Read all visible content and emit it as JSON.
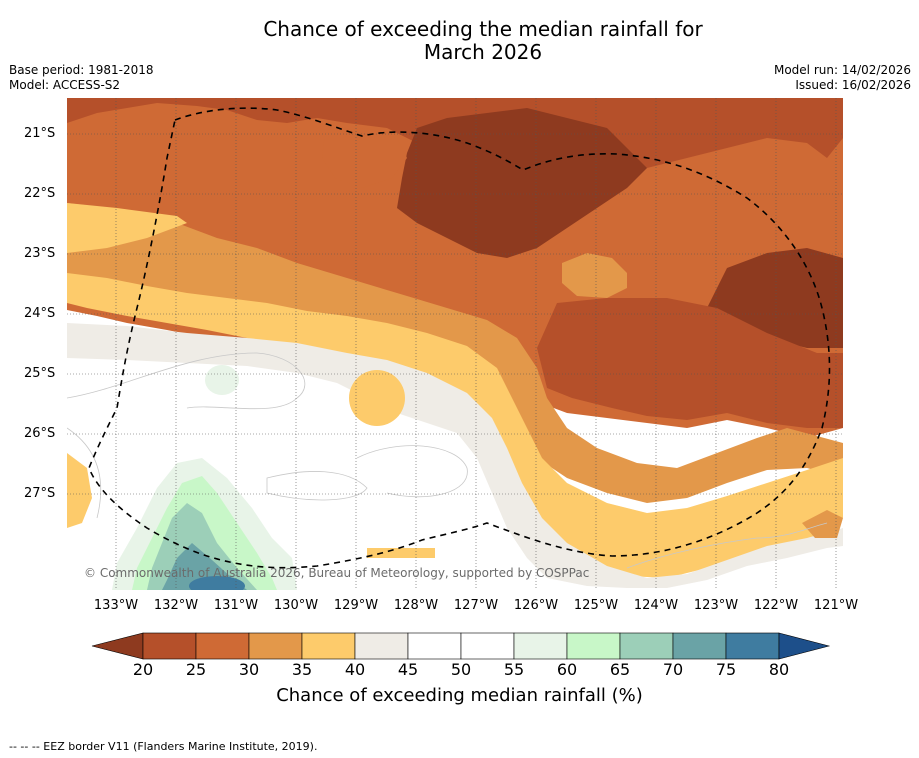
{
  "title_line1": "Chance of exceeding the median rainfall for",
  "title_line2": "March 2026",
  "base_period": "Base period: 1981-2018",
  "model": "Model: ACCESS-S2",
  "model_run": "Model run: 14/02/2026",
  "issued": "Issued: 16/02/2026",
  "lat_labels": [
    "21°S",
    "22°S",
    "23°S",
    "24°S",
    "25°S",
    "26°S",
    "27°S"
  ],
  "lon_labels": [
    "133°W",
    "132°W",
    "131°W",
    "130°W",
    "129°W",
    "128°W",
    "127°W",
    "126°W",
    "125°W",
    "124°W",
    "123°W",
    "122°W",
    "121°W"
  ],
  "copyright": "© Commonwealth of Australia 2026, Bureau of Meteorology, supported by COSPPac",
  "colorbar": {
    "ticks": [
      "20",
      "25",
      "30",
      "35",
      "40",
      "45",
      "50",
      "55",
      "60",
      "65",
      "70",
      "75",
      "80"
    ],
    "label": "Chance of exceeding median rainfall (%)",
    "colors": {
      "below20": "#8e3a1f",
      "b20_25": "#b5502a",
      "b25_30": "#cf6a35",
      "b30_35": "#e3984a",
      "b35_40": "#fdcb6b",
      "b40_45": "#efece6",
      "b45_50": "#ffffff",
      "b50_55": "#ffffff",
      "b55_60": "#e8f4e8",
      "b60_65": "#c8f7c8",
      "b65_70": "#9ccfb8",
      "b70_75": "#6aa3a6",
      "b75_80": "#3f7ca0",
      "above80": "#1d4f8a"
    }
  },
  "footer": "--  --  -- EEZ border V11 (Flanders Marine Institute, 2019)."
}
